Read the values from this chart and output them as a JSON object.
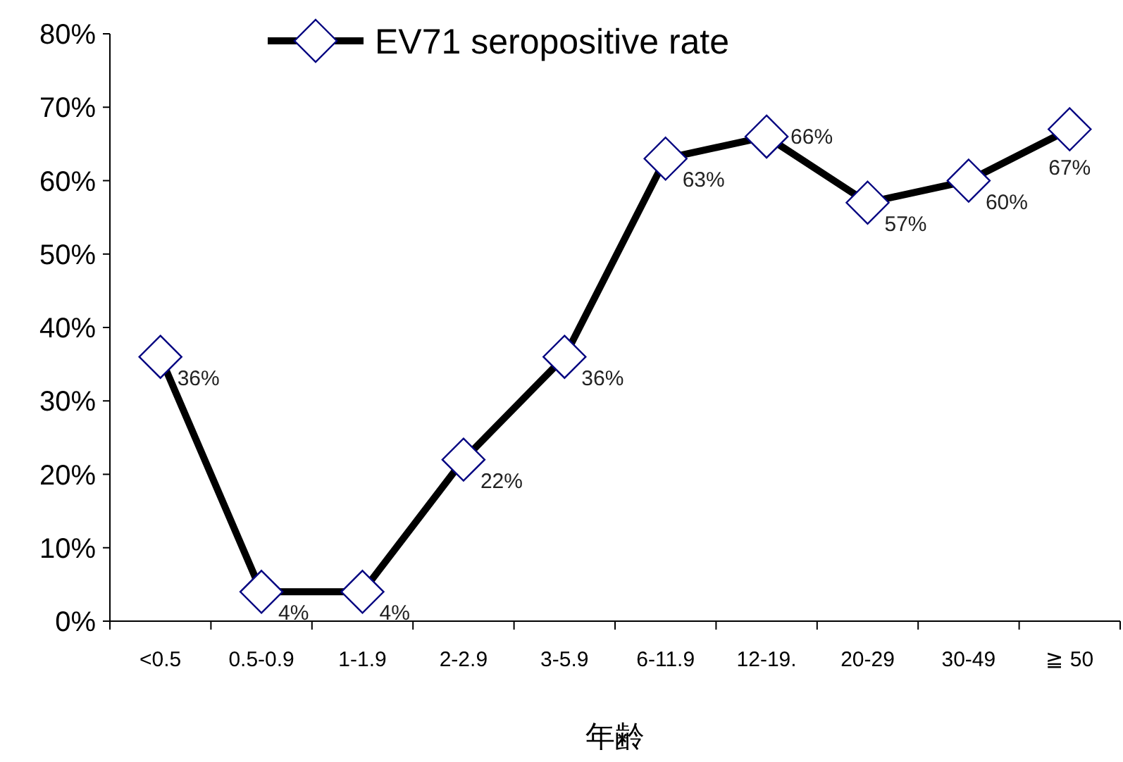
{
  "chart_data": {
    "type": "line",
    "xlabel": "年齢",
    "categories": [
      "<0.5",
      "0.5-0.9",
      "1-1.9",
      "2-2.9",
      "3-5.9",
      "6-11.9",
      "12-19.",
      "20-29",
      "30-49",
      "≧ 50"
    ],
    "series": [
      {
        "name": "EV71 seropositive rate",
        "color": "#000000",
        "colors": [
          "#000080",
          "#000080",
          "#000080",
          "#000080",
          "#000080",
          "#000080",
          "#000080",
          "#000080",
          "#000080",
          "#000080"
        ],
        "values": [
          36,
          4,
          4,
          22,
          36,
          63,
          66,
          57,
          60,
          67
        ],
        "value_labels": [
          "36%",
          "4%",
          "4%",
          "22%",
          "36%",
          "63%",
          "66%",
          "57%",
          "60%",
          "67%"
        ]
      }
    ],
    "ylim": [
      0,
      80
    ],
    "yticks": [
      {
        "value": 0,
        "label": "0%"
      },
      {
        "value": 10,
        "label": "10%"
      },
      {
        "value": 20,
        "label": "20%"
      },
      {
        "value": 30,
        "label": "30%"
      },
      {
        "value": 40,
        "label": "40%"
      },
      {
        "value": 50,
        "label": "50%"
      },
      {
        "value": 60,
        "label": "60%"
      },
      {
        "value": 70,
        "label": "70%"
      },
      {
        "value": 80,
        "label": "80%"
      }
    ],
    "marker": "diamond",
    "line_style": "solid",
    "legend": "top"
  }
}
